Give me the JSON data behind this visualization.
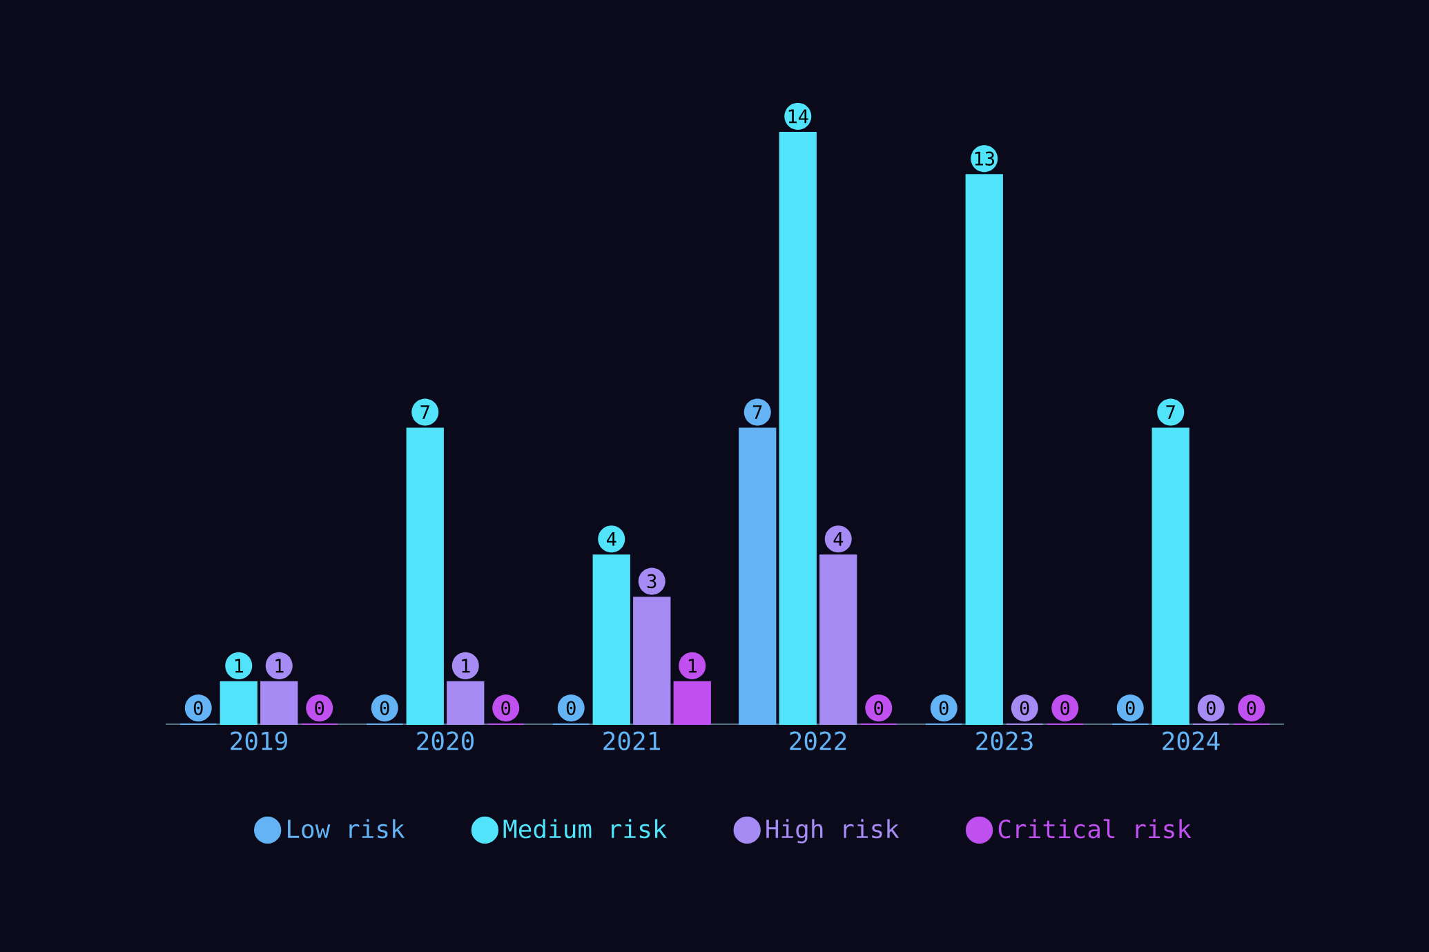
{
  "chart_data": {
    "type": "bar",
    "categories": [
      "2019",
      "2020",
      "2021",
      "2022",
      "2023",
      "2024"
    ],
    "series": [
      {
        "name": "Low risk",
        "color": "#63b3f5",
        "values": [
          0,
          0,
          0,
          7,
          0,
          0
        ]
      },
      {
        "name": "Medium risk",
        "color": "#50e3fa",
        "values": [
          1,
          7,
          4,
          14,
          13,
          7
        ]
      },
      {
        "name": "High risk",
        "color": "#a78bf5",
        "values": [
          1,
          1,
          3,
          4,
          0,
          0
        ]
      },
      {
        "name": "Critical risk",
        "color": "#c050f0",
        "values": [
          0,
          0,
          1,
          0,
          0,
          0
        ]
      }
    ],
    "data_labels": true,
    "legend": "bottom"
  }
}
